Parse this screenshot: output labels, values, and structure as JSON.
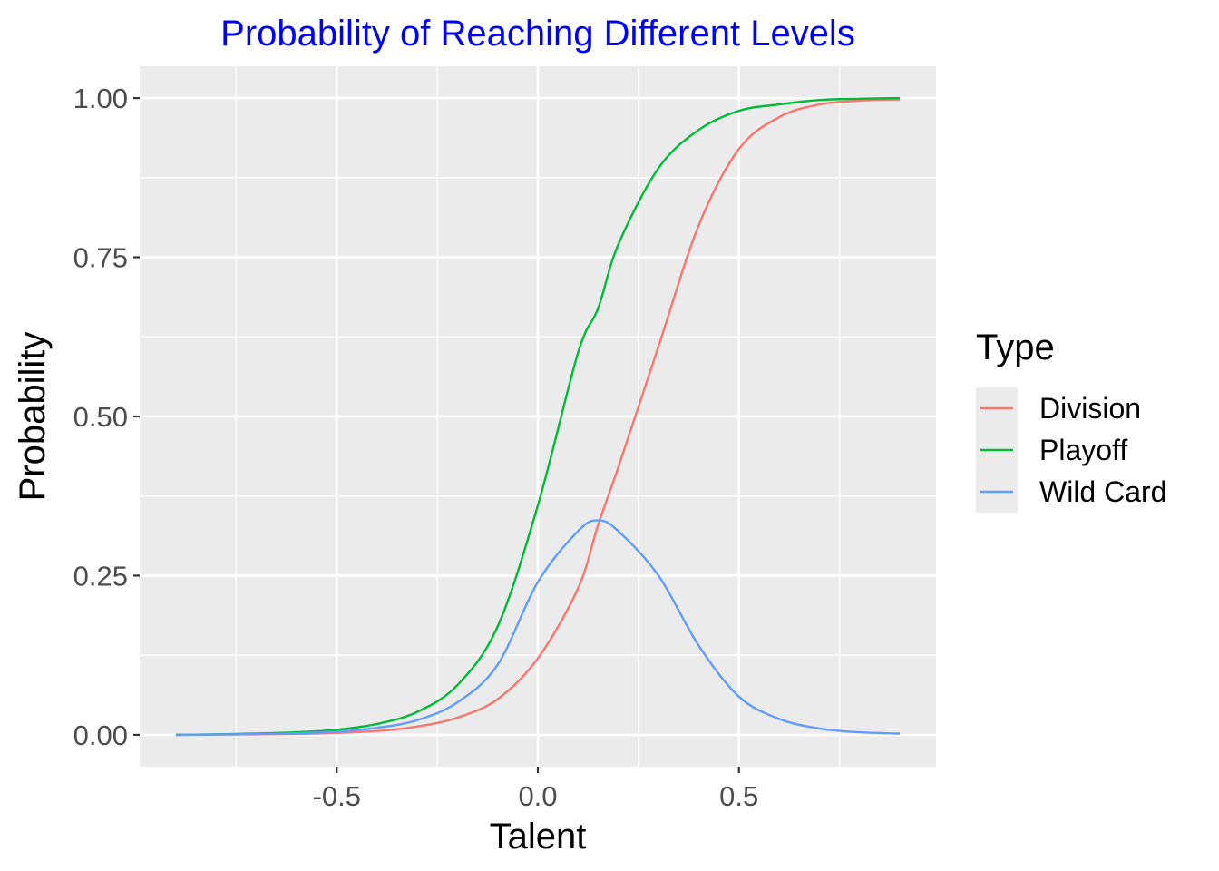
{
  "chart_data": {
    "type": "line",
    "title": "Probability of Reaching Different Levels",
    "xlabel": "Talent",
    "ylabel": "Probability",
    "xlim": [
      -0.99,
      0.99
    ],
    "ylim": [
      -0.05,
      1.05
    ],
    "x_ticks": [
      -0.5,
      0.0,
      0.5
    ],
    "x_tick_labels": [
      "-0.5",
      "0.0",
      "0.5"
    ],
    "y_ticks": [
      0.0,
      0.25,
      0.5,
      0.75,
      1.0
    ],
    "y_tick_labels": [
      "0.00",
      "0.25",
      "0.50",
      "0.75",
      "1.00"
    ],
    "grid": true,
    "legend": {
      "title": "Type",
      "placement": "right"
    },
    "x": [
      -0.9,
      -0.8,
      -0.7,
      -0.6,
      -0.5,
      -0.4,
      -0.3,
      -0.2,
      -0.1,
      0.0,
      0.1,
      0.15,
      0.2,
      0.3,
      0.4,
      0.5,
      0.6,
      0.7,
      0.8,
      0.9
    ],
    "series": [
      {
        "name": "Division",
        "color": "#F8766D",
        "values": [
          0.0,
          0.0003,
          0.0007,
          0.0014,
          0.003,
          0.006,
          0.013,
          0.027,
          0.056,
          0.12,
          0.23,
          0.33,
          0.42,
          0.61,
          0.8,
          0.92,
          0.97,
          0.99,
          0.996,
          0.998
        ]
      },
      {
        "name": "Playoff",
        "color": "#00BA38",
        "values": [
          0.0,
          0.0008,
          0.002,
          0.004,
          0.008,
          0.017,
          0.036,
          0.078,
          0.17,
          0.36,
          0.6,
          0.67,
          0.77,
          0.89,
          0.95,
          0.98,
          0.99,
          0.997,
          0.999,
          1.0
        ]
      },
      {
        "name": "Wild Card",
        "color": "#619CFF",
        "values": [
          0.0,
          0.0005,
          0.0012,
          0.0025,
          0.005,
          0.011,
          0.023,
          0.051,
          0.11,
          0.24,
          0.32,
          0.337,
          0.32,
          0.25,
          0.14,
          0.06,
          0.025,
          0.01,
          0.004,
          0.002
        ]
      }
    ]
  }
}
